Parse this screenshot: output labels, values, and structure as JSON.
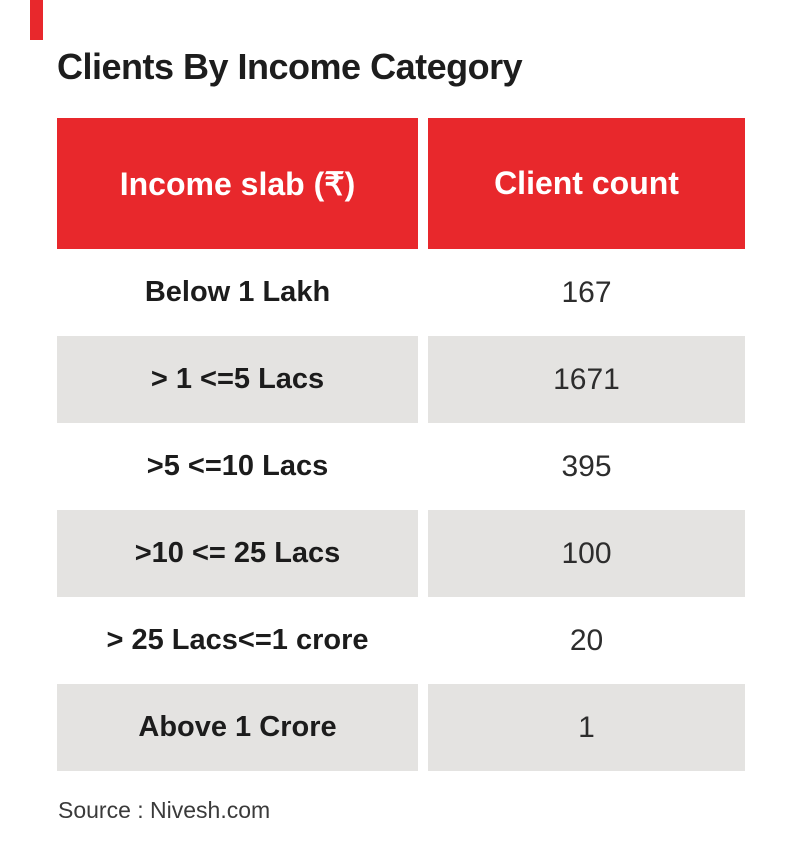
{
  "page": {
    "title": "Clients By Income Category",
    "source": "Source : Nivesh.com"
  },
  "colors": {
    "accent_red": "#e8282c",
    "row_gray": "#e4e3e1",
    "header_text": "#ffffff",
    "body_text": "#1c1c1c"
  },
  "chart_data": {
    "type": "table",
    "title": "Clients By Income Category",
    "columns": [
      "Income slab (₹)",
      "Client count"
    ],
    "rows": [
      {
        "slab": "Below 1 Lakh",
        "count": 167
      },
      {
        "slab": "> 1 <=5 Lacs",
        "count": 1671
      },
      {
        "slab": ">5 <=10 Lacs",
        "count": 395
      },
      {
        "slab": ">10 <= 25 Lacs",
        "count": 100
      },
      {
        "slab": "> 25 Lacs<=1 crore",
        "count": 20
      },
      {
        "slab": "Above 1 Crore",
        "count": 1
      }
    ],
    "source": "Source : Nivesh.com"
  }
}
